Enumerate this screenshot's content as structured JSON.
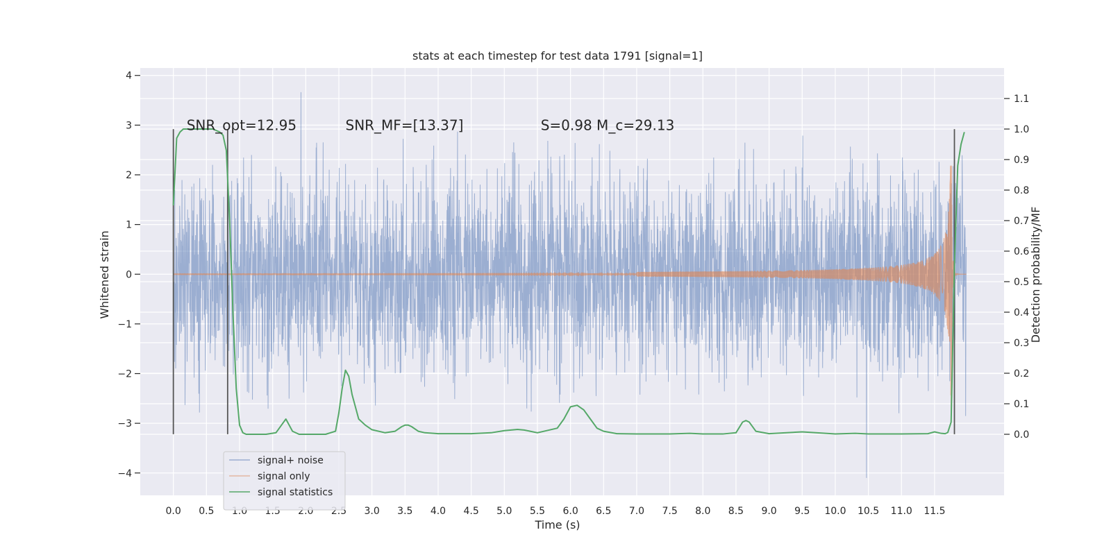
{
  "chart_data": {
    "type": "line",
    "title": "stats at each timestep for test data 1791 [signal=1]",
    "xlabel": "Time (s)",
    "ylabel": "Whitened strain",
    "y2label": "Detection probability/MF",
    "xlim": [
      -0.5,
      12.55
    ],
    "ylim": [
      -4.45,
      4.15
    ],
    "y2lim": [
      -0.2,
      1.2
    ],
    "x_ticks": [
      0.0,
      0.5,
      1.0,
      1.5,
      2.0,
      2.5,
      3.0,
      3.5,
      4.0,
      4.5,
      5.0,
      5.5,
      6.0,
      6.5,
      7.0,
      7.5,
      8.0,
      8.5,
      9.0,
      9.5,
      10.0,
      10.5,
      11.0,
      11.5
    ],
    "x_tick_labels": [
      "0.0",
      "0.5",
      "1.0",
      "1.5",
      "2.0",
      "2.5",
      "3.0",
      "3.5",
      "4.0",
      "4.5",
      "5.0",
      "5.5",
      "6.0",
      "6.5",
      "7.0",
      "7.5",
      "8.0",
      "8.5",
      "9.0",
      "9.5",
      "10.0",
      "10.5",
      "11.0",
      "11.5"
    ],
    "y_ticks": [
      -4,
      -3,
      -2,
      -1,
      0,
      1,
      2,
      3,
      4
    ],
    "y_tick_labels": [
      "−4",
      "−3",
      "−2",
      "−1",
      "0",
      "1",
      "2",
      "3",
      "4"
    ],
    "y2_ticks": [
      0.0,
      0.1,
      0.2,
      0.3,
      0.4,
      0.5,
      0.6,
      0.7,
      0.8,
      0.9,
      1.0,
      1.1
    ],
    "y2_tick_labels": [
      "0.0",
      "0.1",
      "0.2",
      "0.3",
      "0.4",
      "0.5",
      "0.6",
      "0.7",
      "0.8",
      "0.9",
      "1.0",
      "1.1"
    ],
    "grid": true,
    "legend_position": "lower-left",
    "annotations": [
      {
        "x": 0.2,
        "y": 3.0,
        "text": "SNR_opt=12.95"
      },
      {
        "x": 2.6,
        "y": 3.0,
        "text": "SNR_MF=[13.37]"
      },
      {
        "x": 5.55,
        "y": 3.0,
        "text": "S=0.98   M_c=29.13"
      }
    ],
    "window_markers": [
      {
        "x": 0.0,
        "ymin": -3.22,
        "ymax": 2.92
      },
      {
        "x": 0.82,
        "ymin": -3.22,
        "ymax": 2.92
      },
      {
        "x": 11.8,
        "ymin": -3.22,
        "ymax": 2.92
      }
    ],
    "series": [
      {
        "name": "signal+ noise",
        "axis": "left",
        "color": "#4c72b0",
        "description_values": "noisy whitened strain, approx. Gaussian, amplitude mostly within -2..2, spikes to ~3.8",
        "x_range": [
          0.0,
          11.98
        ],
        "envelope_min": -4.1,
        "envelope_max": 3.8
      },
      {
        "name": "signal only",
        "axis": "left",
        "color": "#dd8452",
        "chirp_end": 11.75,
        "peak_amplitude": 3.0
      },
      {
        "name": "signal statistics",
        "axis": "right",
        "color": "#55a868",
        "x": [
          0.0,
          0.05,
          0.1,
          0.15,
          0.2,
          0.3,
          0.4,
          0.5,
          0.6,
          0.7,
          0.75,
          0.8,
          0.85,
          0.9,
          0.95,
          1.0,
          1.05,
          1.1,
          1.2,
          1.4,
          1.55,
          1.6,
          1.65,
          1.7,
          1.75,
          1.8,
          1.9,
          2.1,
          2.3,
          2.45,
          2.5,
          2.55,
          2.6,
          2.65,
          2.7,
          2.75,
          2.8,
          2.9,
          3.0,
          3.2,
          3.35,
          3.45,
          3.5,
          3.55,
          3.6,
          3.7,
          3.8,
          4.0,
          4.5,
          4.8,
          5.0,
          5.2,
          5.3,
          5.5,
          5.8,
          5.9,
          6.0,
          6.1,
          6.2,
          6.3,
          6.4,
          6.5,
          6.7,
          7.0,
          7.5,
          7.8,
          8.0,
          8.3,
          8.5,
          8.6,
          8.65,
          8.7,
          8.8,
          9.0,
          9.5,
          10.0,
          10.3,
          10.5,
          11.0,
          11.4,
          11.5,
          11.6,
          11.66,
          11.7,
          11.75,
          11.8,
          11.85,
          11.9,
          11.95
        ],
        "values": [
          0.75,
          0.97,
          0.99,
          1.0,
          1.0,
          1.0,
          1.0,
          1.0,
          1.0,
          0.99,
          0.98,
          0.93,
          0.7,
          0.4,
          0.15,
          0.03,
          0.005,
          0.0,
          0.0,
          0.0,
          0.005,
          0.02,
          0.035,
          0.05,
          0.03,
          0.01,
          0.0,
          0.0,
          0.0,
          0.01,
          0.07,
          0.15,
          0.21,
          0.19,
          0.13,
          0.09,
          0.05,
          0.03,
          0.015,
          0.005,
          0.01,
          0.025,
          0.03,
          0.03,
          0.025,
          0.01,
          0.005,
          0.002,
          0.002,
          0.005,
          0.012,
          0.016,
          0.014,
          0.005,
          0.02,
          0.05,
          0.09,
          0.095,
          0.08,
          0.05,
          0.02,
          0.01,
          0.002,
          0.001,
          0.001,
          0.003,
          0.001,
          0.001,
          0.005,
          0.04,
          0.045,
          0.04,
          0.01,
          0.002,
          0.008,
          0.001,
          0.003,
          0.001,
          0.001,
          0.002,
          0.008,
          0.003,
          0.002,
          0.006,
          0.04,
          0.55,
          0.88,
          0.95,
          0.99
        ]
      }
    ],
    "legend": [
      {
        "label": "signal+ noise",
        "color": "#4c72b0"
      },
      {
        "label": "signal only",
        "color": "#dd8452"
      },
      {
        "label": "signal statistics",
        "color": "#55a868"
      }
    ]
  }
}
